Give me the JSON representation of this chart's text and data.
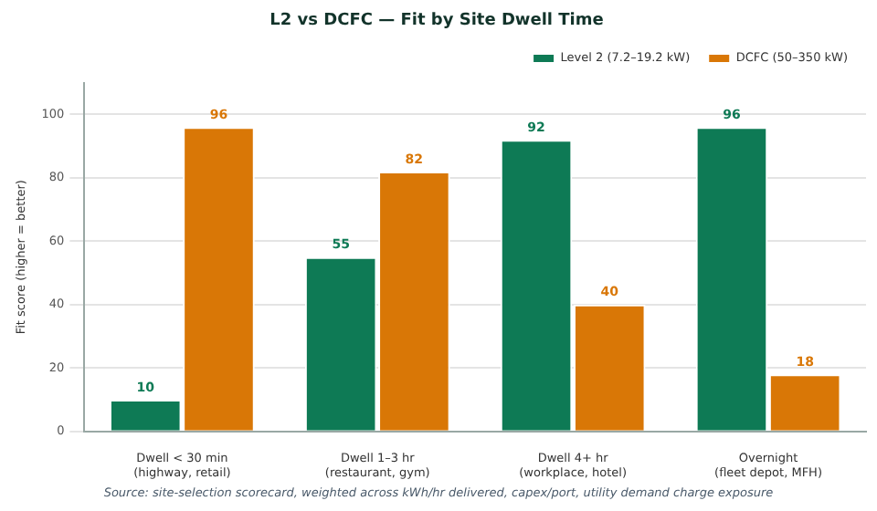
{
  "chart_data": {
    "type": "bar",
    "title": "L2 vs DCFC — Fit by Site Dwell Time",
    "ylabel": "Fit score (higher = better)",
    "categories": [
      "Dwell < 30 min\n(highway, retail)",
      "Dwell 1–3 hr\n(restaurant, gym)",
      "Dwell 4+ hr\n(workplace, hotel)",
      "Overnight\n(fleet depot, MFH)"
    ],
    "series": [
      {
        "name": "Level 2 (7.2–19.2 kW)",
        "color": "#0e7a55",
        "values": [
          10,
          55,
          92,
          96
        ]
      },
      {
        "name": "DCFC (50–350 kW)",
        "color": "#d97706",
        "values": [
          96,
          82,
          40,
          18
        ]
      }
    ],
    "ylim": [
      0,
      110
    ],
    "yticks": [
      0,
      20,
      40,
      60,
      80,
      100
    ],
    "grid": "y",
    "legend": "top right",
    "data_labels": true,
    "annotations": [
      "Source: site-selection scorecard, weighted across kWh/hr delivered, capex/port, utility demand charge exposure"
    ]
  }
}
